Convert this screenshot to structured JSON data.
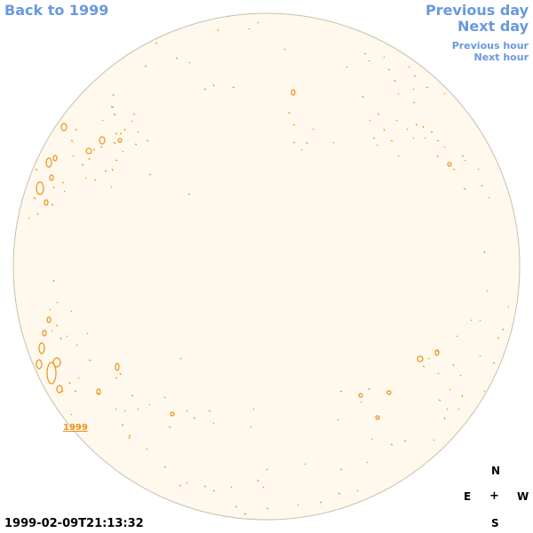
{
  "nav": {
    "back_label": "Back to 1999",
    "prev_day_label": "Previous day",
    "next_day_label": "Next day",
    "prev_hour_label": "Previous hour",
    "next_hour_label": "Next hour"
  },
  "timestamp": "1999-02-09T21:13:32",
  "compass": {
    "north": "N",
    "east": "E",
    "center": "+",
    "west": "W",
    "south": "S"
  },
  "region_label": "1999",
  "colors": {
    "link": "#6a98e0",
    "disk_fill": "#fff8ec",
    "disk_stroke": "#c8c0b0",
    "contour": "#f09018"
  }
}
